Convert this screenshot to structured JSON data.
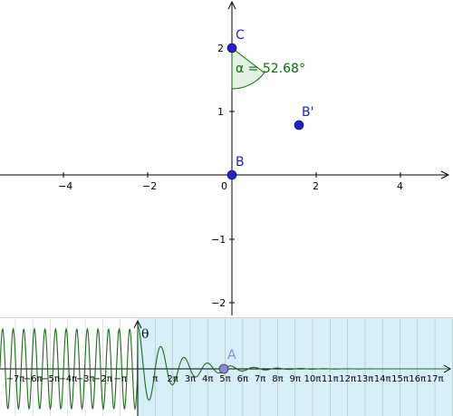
{
  "graphics": {
    "points": {
      "C": {
        "label": "C",
        "x": 0,
        "y": 2
      },
      "B": {
        "label": "B",
        "x": 0,
        "y": 0
      },
      "Bprime": {
        "label": "B'",
        "x": 1.59,
        "y": 0.79
      }
    },
    "angle": {
      "label": "α = 52.68°",
      "degrees": 52.68
    },
    "x_ticks": [
      "−4",
      "−2",
      "0",
      "2",
      "4"
    ],
    "y_ticks": [
      "2",
      "1",
      "−1",
      "−2"
    ],
    "colors": {
      "point": "#1f1fd6",
      "angle_stroke": "#0a6b0a",
      "angle_fill": "#e3f1e3",
      "axis": "#000000"
    }
  },
  "slider_panel": {
    "axis_label": "θ",
    "point_A": {
      "label": "A",
      "theta_pi": 4.92
    },
    "pi_ticks": [
      "−7π",
      "−6π",
      "−5π",
      "−4π",
      "−3π",
      "−2π",
      "−π",
      "π",
      "2π",
      "3π",
      "4π",
      "5π",
      "6π",
      "7π",
      "8π",
      "9π",
      "10π",
      "11π",
      "12π",
      "13π",
      "14π",
      "15π",
      "16π",
      "17π"
    ],
    "colors": {
      "background": "#d6f0fa",
      "grid": "#b8c8d0",
      "curve": "#1d6b1d",
      "point": "#8888dd"
    }
  }
}
